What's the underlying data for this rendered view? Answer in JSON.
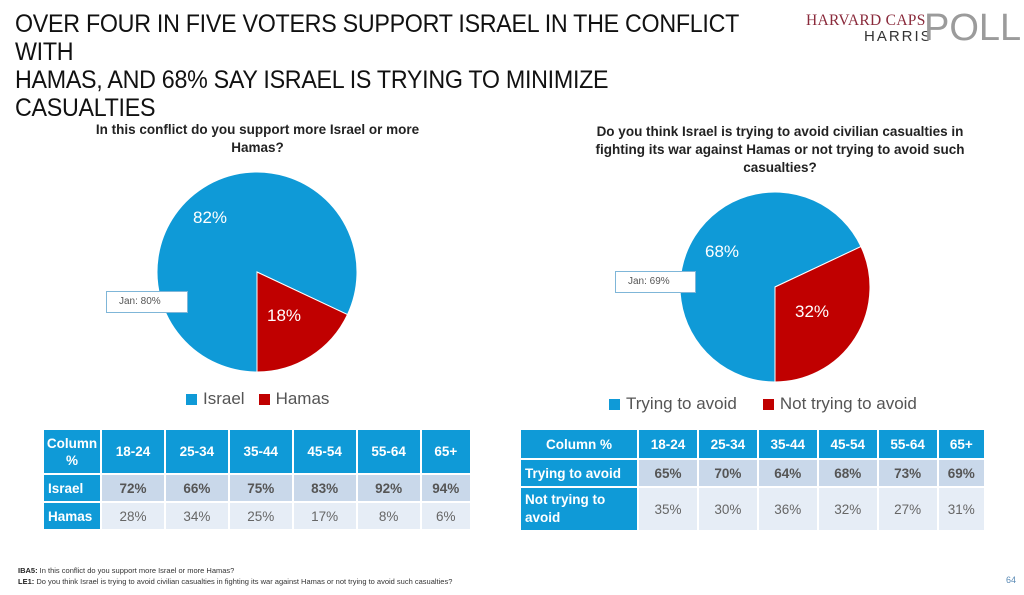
{
  "title": {
    "line1": "OVER FOUR IN FIVE VOTERS SUPPORT ISRAEL IN THE CONFLICT WITH",
    "line2": "HAMAS, AND 68% SAY ISRAEL IS TRYING TO MINIMIZE CASUALTIES"
  },
  "logo": {
    "harvard": "HARVARD CAPS",
    "harris": "HARRIS",
    "poll": "POLL"
  },
  "colors": {
    "blue": "#0f9ad7",
    "red": "#c00000",
    "table_header": "#0f9ad7",
    "row1_bg": "#c9d8ea",
    "row2_bg": "#e6edf6"
  },
  "chart_data": [
    {
      "type": "pie",
      "title": "In this conflict do you support more Israel or more Hamas?",
      "categories": [
        "Israel",
        "Hamas"
      ],
      "values": [
        82,
        18
      ],
      "labels": [
        "82%",
        "18%"
      ],
      "colors": [
        "#0f9ad7",
        "#c00000"
      ],
      "annotation": "Jan: 80%",
      "legend": "bottom"
    },
    {
      "type": "pie",
      "title": "Do you think Israel is trying to avoid civilian casualties in fighting its war against Hamas or not trying to avoid such casualties?",
      "categories": [
        "Trying to avoid",
        "Not trying to avoid"
      ],
      "values": [
        68,
        32
      ],
      "labels": [
        "68%",
        "32%"
      ],
      "colors": [
        "#0f9ad7",
        "#c00000"
      ],
      "annotation": "Jan: 69%",
      "legend": "bottom"
    },
    {
      "type": "table",
      "corner": "Column %",
      "columns": [
        "18-24",
        "25-34",
        "35-44",
        "45-54",
        "55-64",
        "65+"
      ],
      "rows": [
        {
          "label": "Israel",
          "values": [
            "72%",
            "66%",
            "75%",
            "83%",
            "92%",
            "94%"
          ]
        },
        {
          "label": "Hamas",
          "values": [
            "28%",
            "34%",
            "25%",
            "17%",
            "8%",
            "6%"
          ]
        }
      ]
    },
    {
      "type": "table",
      "corner": "Column %",
      "columns": [
        "18-24",
        "25-34",
        "35-44",
        "45-54",
        "55-64",
        "65+"
      ],
      "rows": [
        {
          "label": "Trying to avoid",
          "values": [
            "65%",
            "70%",
            "64%",
            "68%",
            "73%",
            "69%"
          ]
        },
        {
          "label": "Not trying to avoid",
          "values": [
            "35%",
            "30%",
            "36%",
            "32%",
            "27%",
            "31%"
          ]
        }
      ]
    }
  ],
  "footnotes": [
    {
      "code": "IBA5:",
      "text": " In this conflict do you support more Israel or more Hamas?"
    },
    {
      "code": "LE1:",
      "text": " Do you think Israel is trying to avoid civilian casualties in fighting its war against Hamas or not trying to avoid such casualties?"
    }
  ],
  "page_number": "64"
}
